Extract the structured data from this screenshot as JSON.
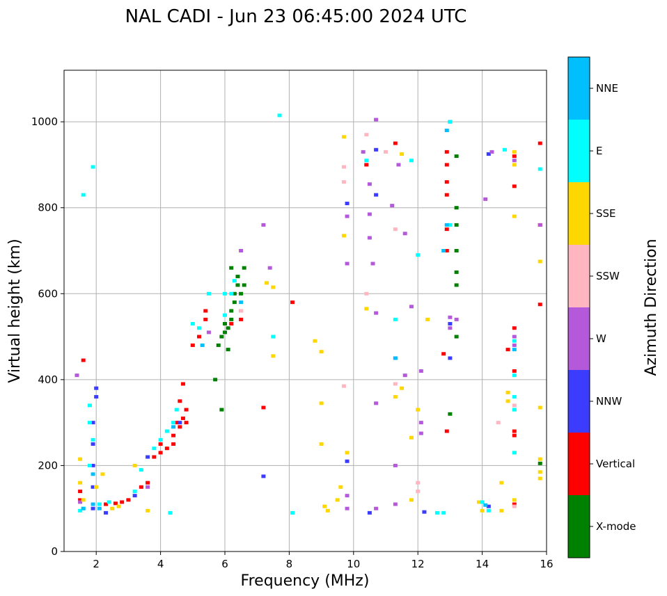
{
  "chart_data": {
    "type": "scatter",
    "title": "NAL CADI - Jun 23 06:45:00 2024 UTC",
    "xlabel": "Frequency (MHz)",
    "ylabel": "Virtual height (km)",
    "xlim": [
      1,
      16
    ],
    "ylim": [
      0,
      1120
    ],
    "xticks": [
      2,
      4,
      6,
      8,
      10,
      12,
      14,
      16
    ],
    "yticks": [
      0,
      200,
      400,
      600,
      800,
      1000
    ],
    "grid": true,
    "colorbar": {
      "label": "Azimuth Direction",
      "categories": [
        {
          "name": "X-mode",
          "color": "#008000"
        },
        {
          "name": "Vertical",
          "color": "#ff0000"
        },
        {
          "name": "NNW",
          "color": "#3c3cff"
        },
        {
          "name": "W",
          "color": "#b359d9"
        },
        {
          "name": "SSW",
          "color": "#ffb6c1"
        },
        {
          "name": "SSE",
          "color": "#ffd700"
        },
        {
          "name": "E",
          "color": "#00ffff"
        },
        {
          "name": "NNE",
          "color": "#00bfff"
        }
      ]
    },
    "series": [
      {
        "name": "X-mode",
        "points": [
          [
            5.8,
            480
          ],
          [
            5.9,
            500
          ],
          [
            6.0,
            510
          ],
          [
            6.0,
            530
          ],
          [
            6.1,
            520
          ],
          [
            6.2,
            540
          ],
          [
            6.2,
            560
          ],
          [
            6.3,
            580
          ],
          [
            6.3,
            600
          ],
          [
            6.4,
            620
          ],
          [
            6.4,
            640
          ],
          [
            6.5,
            560
          ],
          [
            6.5,
            600
          ],
          [
            6.6,
            620
          ],
          [
            6.6,
            660
          ],
          [
            5.7,
            400
          ],
          [
            5.9,
            330
          ],
          [
            13.0,
            320
          ],
          [
            13.2,
            620
          ],
          [
            13.2,
            650
          ],
          [
            13.2,
            700
          ],
          [
            13.2,
            760
          ],
          [
            13.2,
            800
          ],
          [
            13.2,
            920
          ],
          [
            13.2,
            500
          ],
          [
            15.8,
            205
          ],
          [
            6.2,
            660
          ],
          [
            6.1,
            470
          ]
        ]
      },
      {
        "name": "Vertical",
        "points": [
          [
            1.5,
            120
          ],
          [
            1.5,
            140
          ],
          [
            2.3,
            110
          ],
          [
            2.6,
            112
          ],
          [
            2.8,
            115
          ],
          [
            3.0,
            120
          ],
          [
            3.4,
            150
          ],
          [
            3.6,
            160
          ],
          [
            3.8,
            220
          ],
          [
            4.0,
            230
          ],
          [
            4.0,
            250
          ],
          [
            4.2,
            240
          ],
          [
            4.4,
            250
          ],
          [
            4.4,
            270
          ],
          [
            4.5,
            300
          ],
          [
            4.6,
            290
          ],
          [
            4.7,
            310
          ],
          [
            4.8,
            300
          ],
          [
            4.6,
            350
          ],
          [
            4.7,
            390
          ],
          [
            4.8,
            330
          ],
          [
            5.0,
            480
          ],
          [
            5.2,
            500
          ],
          [
            5.4,
            540
          ],
          [
            5.4,
            560
          ],
          [
            6.2,
            530
          ],
          [
            6.5,
            540
          ],
          [
            8.1,
            580
          ],
          [
            10.4,
            900
          ],
          [
            11.3,
            950
          ],
          [
            12.8,
            460
          ],
          [
            12.9,
            280
          ],
          [
            12.9,
            700
          ],
          [
            12.9,
            750
          ],
          [
            12.9,
            830
          ],
          [
            12.9,
            860
          ],
          [
            12.9,
            900
          ],
          [
            12.9,
            930
          ],
          [
            14.8,
            470
          ],
          [
            15.0,
            110
          ],
          [
            15.0,
            270
          ],
          [
            15.0,
            280
          ],
          [
            15.0,
            420
          ],
          [
            15.0,
            520
          ],
          [
            15.0,
            850
          ],
          [
            15.0,
            920
          ],
          [
            15.8,
            575
          ],
          [
            15.8,
            760
          ],
          [
            15.8,
            950
          ],
          [
            1.6,
            445
          ],
          [
            7.2,
            335
          ]
        ]
      },
      {
        "name": "NNW",
        "points": [
          [
            1.9,
            100
          ],
          [
            1.9,
            150
          ],
          [
            1.9,
            200
          ],
          [
            1.9,
            250
          ],
          [
            1.9,
            300
          ],
          [
            2.0,
            360
          ],
          [
            2.0,
            380
          ],
          [
            2.3,
            90
          ],
          [
            3.2,
            130
          ],
          [
            3.6,
            220
          ],
          [
            4.6,
            300
          ],
          [
            7.2,
            175
          ],
          [
            9.8,
            210
          ],
          [
            9.8,
            810
          ],
          [
            10.5,
            90
          ],
          [
            10.7,
            830
          ],
          [
            12.2,
            92
          ],
          [
            13.0,
            450
          ],
          [
            13.0,
            530
          ],
          [
            13.0,
            1000
          ],
          [
            14.2,
            925
          ],
          [
            14.2,
            105
          ],
          [
            10.7,
            935
          ]
        ]
      },
      {
        "name": "W",
        "points": [
          [
            1.4,
            410
          ],
          [
            1.5,
            115
          ],
          [
            3.6,
            150
          ],
          [
            5.5,
            510
          ],
          [
            6.5,
            700
          ],
          [
            7.2,
            760
          ],
          [
            7.4,
            660
          ],
          [
            9.8,
            130
          ],
          [
            9.8,
            780
          ],
          [
            9.8,
            670
          ],
          [
            10.3,
            930
          ],
          [
            10.5,
            855
          ],
          [
            10.5,
            785
          ],
          [
            10.5,
            730
          ],
          [
            10.6,
            670
          ],
          [
            10.7,
            555
          ],
          [
            10.7,
            345
          ],
          [
            10.7,
            100
          ],
          [
            10.7,
            1005
          ],
          [
            11.3,
            110
          ],
          [
            11.3,
            200
          ],
          [
            11.3,
            450
          ],
          [
            11.2,
            805
          ],
          [
            11.4,
            900
          ],
          [
            11.6,
            410
          ],
          [
            11.6,
            740
          ],
          [
            11.8,
            570
          ],
          [
            12.1,
            420
          ],
          [
            12.1,
            300
          ],
          [
            12.1,
            275
          ],
          [
            13.0,
            545
          ],
          [
            13.0,
            520
          ],
          [
            13.2,
            540
          ],
          [
            14.1,
            820
          ],
          [
            14.3,
            930
          ],
          [
            15.0,
            480
          ],
          [
            15.0,
            500
          ],
          [
            15.0,
            910
          ],
          [
            15.8,
            760
          ],
          [
            9.8,
            100
          ]
        ]
      },
      {
        "name": "SSW",
        "points": [
          [
            9.7,
            385
          ],
          [
            9.7,
            895
          ],
          [
            9.7,
            860
          ],
          [
            10.4,
            600
          ],
          [
            10.4,
            970
          ],
          [
            11.0,
            930
          ],
          [
            11.3,
            390
          ],
          [
            11.3,
            750
          ],
          [
            12.0,
            160
          ],
          [
            12.0,
            140
          ],
          [
            14.5,
            300
          ],
          [
            15.0,
            340
          ],
          [
            15.0,
            105
          ],
          [
            15.0,
            930
          ],
          [
            6.5,
            560
          ]
        ]
      },
      {
        "name": "SSE",
        "points": [
          [
            1.5,
            215
          ],
          [
            1.5,
            160
          ],
          [
            1.6,
            120
          ],
          [
            2.0,
            150
          ],
          [
            2.2,
            180
          ],
          [
            2.5,
            100
          ],
          [
            2.7,
            105
          ],
          [
            3.2,
            200
          ],
          [
            3.6,
            95
          ],
          [
            7.3,
            625
          ],
          [
            7.5,
            455
          ],
          [
            7.5,
            615
          ],
          [
            8.8,
            490
          ],
          [
            9.0,
            465
          ],
          [
            9.0,
            345
          ],
          [
            9.0,
            250
          ],
          [
            9.1,
            105
          ],
          [
            9.2,
            95
          ],
          [
            9.5,
            120
          ],
          [
            9.6,
            150
          ],
          [
            9.7,
            965
          ],
          [
            9.7,
            735
          ],
          [
            9.8,
            230
          ],
          [
            10.4,
            565
          ],
          [
            11.3,
            360
          ],
          [
            11.5,
            925
          ],
          [
            11.5,
            380
          ],
          [
            11.8,
            265
          ],
          [
            11.8,
            120
          ],
          [
            12.3,
            540
          ],
          [
            13.9,
            115
          ],
          [
            14.0,
            95
          ],
          [
            14.6,
            160
          ],
          [
            14.6,
            95
          ],
          [
            14.8,
            370
          ],
          [
            14.8,
            350
          ],
          [
            15.0,
            900
          ],
          [
            15.0,
            930
          ],
          [
            15.0,
            780
          ],
          [
            15.0,
            330
          ],
          [
            15.0,
            230
          ],
          [
            15.0,
            120
          ],
          [
            15.8,
            675
          ],
          [
            15.8,
            335
          ],
          [
            15.8,
            215
          ],
          [
            15.8,
            185
          ],
          [
            15.8,
            170
          ],
          [
            12.0,
            330
          ]
        ]
      },
      {
        "name": "E",
        "points": [
          [
            1.5,
            95
          ],
          [
            1.6,
            100
          ],
          [
            1.8,
            200
          ],
          [
            1.8,
            300
          ],
          [
            1.8,
            340
          ],
          [
            1.9,
            260
          ],
          [
            2.1,
            110
          ],
          [
            2.4,
            115
          ],
          [
            3.2,
            140
          ],
          [
            3.4,
            190
          ],
          [
            3.8,
            240
          ],
          [
            4.0,
            260
          ],
          [
            4.2,
            280
          ],
          [
            4.4,
            300
          ],
          [
            4.5,
            330
          ],
          [
            5.0,
            530
          ],
          [
            5.2,
            520
          ],
          [
            5.5,
            600
          ],
          [
            6.0,
            600
          ],
          [
            6.0,
            550
          ],
          [
            6.2,
            600
          ],
          [
            6.3,
            630
          ],
          [
            7.5,
            500
          ],
          [
            7.7,
            1015
          ],
          [
            8.1,
            90
          ],
          [
            10.4,
            910
          ],
          [
            11.3,
            540
          ],
          [
            11.8,
            910
          ],
          [
            12.0,
            690
          ],
          [
            12.6,
            90
          ],
          [
            12.8,
            90
          ],
          [
            13.0,
            760
          ],
          [
            13.0,
            1000
          ],
          [
            14.0,
            115
          ],
          [
            14.2,
            95
          ],
          [
            14.7,
            935
          ],
          [
            15.0,
            410
          ],
          [
            15.0,
            230
          ],
          [
            15.0,
            330
          ],
          [
            15.0,
            360
          ],
          [
            15.0,
            490
          ],
          [
            15.8,
            890
          ],
          [
            1.9,
            895
          ],
          [
            1.6,
            830
          ],
          [
            4.3,
            90
          ]
        ]
      },
      {
        "name": "NNE",
        "points": [
          [
            1.6,
            100
          ],
          [
            1.9,
            110
          ],
          [
            1.9,
            180
          ],
          [
            2.1,
            100
          ],
          [
            4.4,
            290
          ],
          [
            5.3,
            480
          ],
          [
            6.5,
            580
          ],
          [
            11.3,
            450
          ],
          [
            12.8,
            700
          ],
          [
            12.9,
            760
          ],
          [
            12.9,
            980
          ],
          [
            14.1,
            108
          ],
          [
            15.0,
            470
          ]
        ]
      }
    ]
  }
}
